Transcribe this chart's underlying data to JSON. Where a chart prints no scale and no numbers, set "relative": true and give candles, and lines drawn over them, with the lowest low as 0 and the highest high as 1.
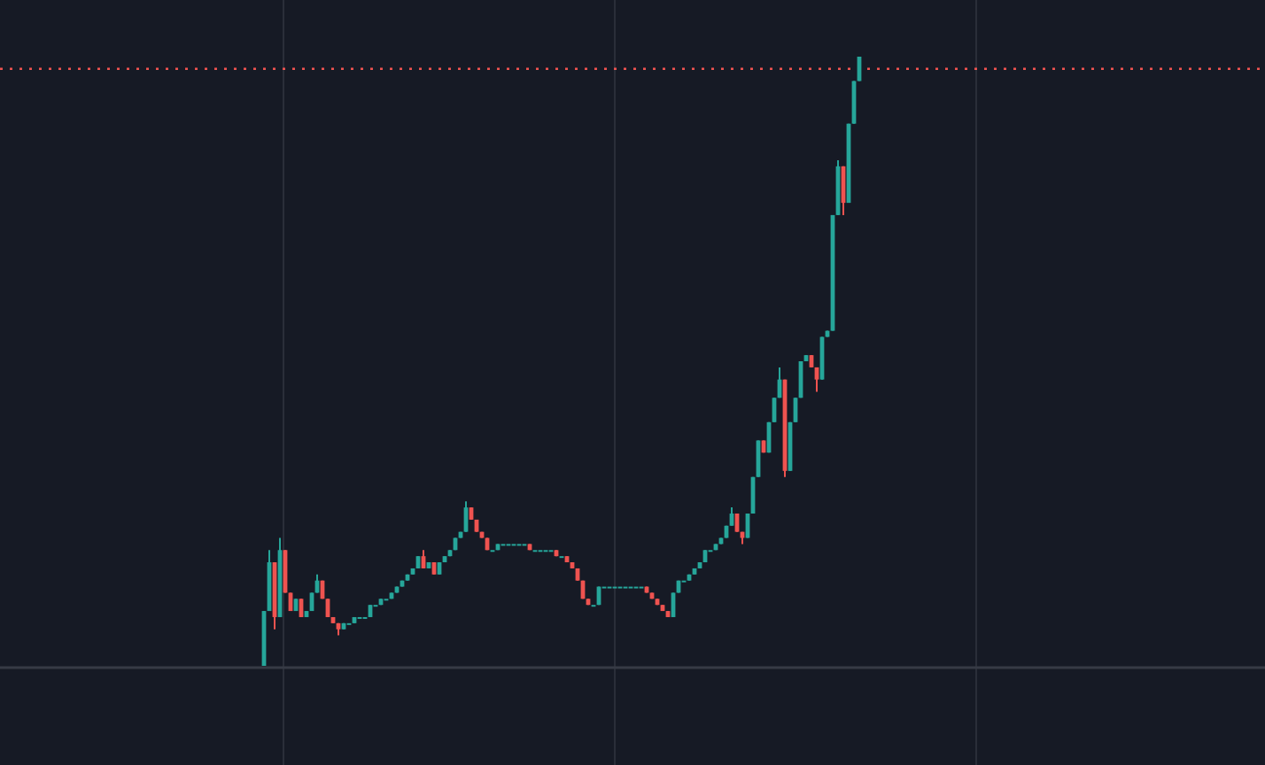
{
  "chart_data": {
    "type": "candlestick",
    "relative": true,
    "categories": [
      null,
      null,
      null,
      null,
      null,
      null,
      null,
      null,
      null,
      null,
      null,
      null,
      null,
      null,
      null,
      null,
      null,
      null,
      null,
      null,
      null,
      null,
      null,
      null,
      null,
      null,
      null,
      null,
      null,
      null,
      null,
      null,
      null,
      null,
      null,
      null,
      null,
      null,
      null,
      null,
      null,
      null,
      null,
      null,
      null,
      null,
      null,
      null,
      null,
      null,
      null,
      null,
      null,
      null,
      null,
      null,
      null,
      null,
      null,
      null,
      null,
      null,
      null,
      null,
      null,
      null,
      null,
      null,
      null,
      null,
      null,
      null,
      null,
      null,
      null,
      null,
      null,
      null,
      null,
      null,
      null,
      null,
      null,
      null,
      null,
      null,
      null,
      null,
      null,
      null,
      null,
      null,
      null,
      null,
      null,
      null,
      null,
      null,
      null,
      null,
      null,
      null,
      null,
      null,
      null,
      null,
      null,
      null,
      null,
      null,
      null,
      null,
      null
    ],
    "ohlc": [
      [
        0,
        0.09,
        0,
        0.09
      ],
      [
        0.09,
        0.19,
        0.09,
        0.17
      ],
      [
        0.17,
        0.17,
        0.06,
        0.08
      ],
      [
        0.08,
        0.21,
        0.08,
        0.19
      ],
      [
        0.19,
        0.19,
        0.12,
        0.12
      ],
      [
        0.12,
        0.12,
        0.09,
        0.09
      ],
      [
        0.09,
        0.11,
        0.09,
        0.11
      ],
      [
        0.11,
        0.11,
        0.08,
        0.08
      ],
      [
        0.08,
        0.09,
        0.08,
        0.09
      ],
      [
        0.09,
        0.12,
        0.09,
        0.12
      ],
      [
        0.12,
        0.15,
        0.12,
        0.14
      ],
      [
        0.14,
        0.14,
        0.11,
        0.11
      ],
      [
        0.11,
        0.11,
        0.08,
        0.08
      ],
      [
        0.08,
        0.08,
        0.07,
        0.07
      ],
      [
        0.07,
        0.07,
        0.05,
        0.06
      ],
      [
        0.06,
        0.07,
        0.06,
        0.07
      ],
      [
        0.07,
        0.07,
        0.07,
        0.07
      ],
      [
        0.07,
        0.08,
        0.07,
        0.08
      ],
      [
        0.08,
        0.08,
        0.08,
        0.08
      ],
      [
        0.08,
        0.08,
        0.08,
        0.08
      ],
      [
        0.08,
        0.1,
        0.08,
        0.1
      ],
      [
        0.1,
        0.1,
        0.1,
        0.1
      ],
      [
        0.1,
        0.11,
        0.1,
        0.11
      ],
      [
        0.11,
        0.11,
        0.11,
        0.11
      ],
      [
        0.11,
        0.12,
        0.11,
        0.12
      ],
      [
        0.12,
        0.13,
        0.12,
        0.13
      ],
      [
        0.13,
        0.14,
        0.13,
        0.14
      ],
      [
        0.14,
        0.15,
        0.14,
        0.15
      ],
      [
        0.15,
        0.16,
        0.15,
        0.16
      ],
      [
        0.16,
        0.18,
        0.16,
        0.18
      ],
      [
        0.18,
        0.19,
        0.16,
        0.16
      ],
      [
        0.16,
        0.17,
        0.16,
        0.17
      ],
      [
        0.17,
        0.17,
        0.15,
        0.15
      ],
      [
        0.15,
        0.17,
        0.15,
        0.17
      ],
      [
        0.17,
        0.18,
        0.17,
        0.18
      ],
      [
        0.18,
        0.19,
        0.18,
        0.19
      ],
      [
        0.19,
        0.21,
        0.19,
        0.21
      ],
      [
        0.21,
        0.22,
        0.21,
        0.22
      ],
      [
        0.22,
        0.27,
        0.22,
        0.26
      ],
      [
        0.26,
        0.26,
        0.24,
        0.24
      ],
      [
        0.24,
        0.24,
        0.22,
        0.22
      ],
      [
        0.22,
        0.22,
        0.21,
        0.21
      ],
      [
        0.21,
        0.21,
        0.19,
        0.19
      ],
      [
        0.19,
        0.19,
        0.19,
        0.19
      ],
      [
        0.19,
        0.2,
        0.19,
        0.2
      ],
      [
        0.2,
        0.2,
        0.2,
        0.2
      ],
      [
        0.2,
        0.2,
        0.2,
        0.2
      ],
      [
        0.2,
        0.2,
        0.2,
        0.2
      ],
      [
        0.2,
        0.2,
        0.2,
        0.2
      ],
      [
        0.2,
        0.2,
        0.2,
        0.2
      ],
      [
        0.2,
        0.2,
        0.19,
        0.19
      ],
      [
        0.19,
        0.19,
        0.19,
        0.19
      ],
      [
        0.19,
        0.19,
        0.19,
        0.19
      ],
      [
        0.19,
        0.19,
        0.19,
        0.19
      ],
      [
        0.19,
        0.19,
        0.19,
        0.19
      ],
      [
        0.19,
        0.19,
        0.18,
        0.18
      ],
      [
        0.18,
        0.18,
        0.18,
        0.18
      ],
      [
        0.18,
        0.18,
        0.17,
        0.17
      ],
      [
        0.17,
        0.17,
        0.16,
        0.16
      ],
      [
        0.16,
        0.16,
        0.14,
        0.14
      ],
      [
        0.14,
        0.14,
        0.11,
        0.11
      ],
      [
        0.11,
        0.11,
        0.1,
        0.1
      ],
      [
        0.1,
        0.1,
        0.1,
        0.1
      ],
      [
        0.1,
        0.13,
        0.1,
        0.13
      ],
      [
        0.13,
        0.13,
        0.13,
        0.13
      ],
      [
        0.13,
        0.13,
        0.13,
        0.13
      ],
      [
        0.13,
        0.13,
        0.13,
        0.13
      ],
      [
        0.13,
        0.13,
        0.13,
        0.13
      ],
      [
        0.13,
        0.13,
        0.13,
        0.13
      ],
      [
        0.13,
        0.13,
        0.13,
        0.13
      ],
      [
        0.13,
        0.13,
        0.13,
        0.13
      ],
      [
        0.13,
        0.13,
        0.13,
        0.13
      ],
      [
        0.13,
        0.13,
        0.12,
        0.12
      ],
      [
        0.12,
        0.12,
        0.11,
        0.11
      ],
      [
        0.11,
        0.11,
        0.1,
        0.1
      ],
      [
        0.1,
        0.1,
        0.09,
        0.09
      ],
      [
        0.09,
        0.09,
        0.08,
        0.08
      ],
      [
        0.08,
        0.12,
        0.08,
        0.12
      ],
      [
        0.12,
        0.14,
        0.12,
        0.14
      ],
      [
        0.14,
        0.14,
        0.14,
        0.14
      ],
      [
        0.14,
        0.15,
        0.14,
        0.15
      ],
      [
        0.15,
        0.16,
        0.15,
        0.16
      ],
      [
        0.16,
        0.17,
        0.16,
        0.17
      ],
      [
        0.17,
        0.19,
        0.17,
        0.19
      ],
      [
        0.19,
        0.19,
        0.19,
        0.19
      ],
      [
        0.19,
        0.2,
        0.19,
        0.2
      ],
      [
        0.2,
        0.21,
        0.2,
        0.21
      ],
      [
        0.21,
        0.23,
        0.21,
        0.23
      ],
      [
        0.23,
        0.26,
        0.23,
        0.25
      ],
      [
        0.25,
        0.25,
        0.22,
        0.22
      ],
      [
        0.22,
        0.22,
        0.2,
        0.21
      ],
      [
        0.21,
        0.25,
        0.21,
        0.25
      ],
      [
        0.25,
        0.31,
        0.25,
        0.31
      ],
      [
        0.31,
        0.37,
        0.31,
        0.37
      ],
      [
        0.37,
        0.37,
        0.35,
        0.35
      ],
      [
        0.35,
        0.4,
        0.35,
        0.4
      ],
      [
        0.4,
        0.44,
        0.4,
        0.44
      ],
      [
        0.44,
        0.49,
        0.44,
        0.47
      ],
      [
        0.47,
        0.47,
        0.31,
        0.32
      ],
      [
        0.32,
        0.4,
        0.32,
        0.4
      ],
      [
        0.4,
        0.44,
        0.4,
        0.44
      ],
      [
        0.44,
        0.5,
        0.44,
        0.5
      ],
      [
        0.5,
        0.51,
        0.5,
        0.51
      ],
      [
        0.51,
        0.51,
        0.49,
        0.49
      ],
      [
        0.49,
        0.49,
        0.45,
        0.47
      ],
      [
        0.47,
        0.54,
        0.47,
        0.54
      ],
      [
        0.54,
        0.55,
        0.54,
        0.55
      ],
      [
        0.55,
        0.74,
        0.55,
        0.74
      ],
      [
        0.74,
        0.83,
        0.74,
        0.82
      ],
      [
        0.82,
        0.82,
        0.74,
        0.76
      ],
      [
        0.76,
        0.89,
        0.76,
        0.89
      ],
      [
        0.89,
        0.96,
        0.89,
        0.96
      ],
      [
        0.96,
        1,
        0.96,
        1
      ]
    ],
    "colors": [
      "#26a69a",
      "#26a69a",
      "#ef5350",
      "#26a69a",
      "#ef5350",
      "#ef5350",
      "#26a69a",
      "#ef5350",
      "#26a69a",
      "#26a69a",
      "#26a69a",
      "#ef5350",
      "#ef5350",
      "#ef5350",
      "#ef5350",
      "#26a69a",
      "#26a69a",
      "#26a69a",
      "#26a69a",
      "#26a69a",
      "#26a69a",
      "#26a69a",
      "#26a69a",
      "#26a69a",
      "#26a69a",
      "#26a69a",
      "#26a69a",
      "#26a69a",
      "#26a69a",
      "#26a69a",
      "#ef5350",
      "#26a69a",
      "#ef5350",
      "#26a69a",
      "#26a69a",
      "#26a69a",
      "#26a69a",
      "#26a69a",
      "#26a69a",
      "#ef5350",
      "#ef5350",
      "#ef5350",
      "#ef5350",
      "#26a69a",
      "#26a69a",
      "#26a69a",
      "#26a69a",
      "#26a69a",
      "#26a69a",
      "#26a69a",
      "#ef5350",
      "#26a69a",
      "#26a69a",
      "#26a69a",
      "#26a69a",
      "#ef5350",
      "#26a69a",
      "#ef5350",
      "#ef5350",
      "#ef5350",
      "#ef5350",
      "#ef5350",
      "#26a69a",
      "#26a69a",
      "#26a69a",
      "#26a69a",
      "#26a69a",
      "#26a69a",
      "#26a69a",
      "#26a69a",
      "#26a69a",
      "#26a69a",
      "#ef5350",
      "#ef5350",
      "#ef5350",
      "#ef5350",
      "#ef5350",
      "#26a69a",
      "#26a69a",
      "#26a69a",
      "#26a69a",
      "#26a69a",
      "#26a69a",
      "#26a69a",
      "#26a69a",
      "#26a69a",
      "#26a69a",
      "#26a69a",
      "#26a69a",
      "#ef5350",
      "#ef5350",
      "#26a69a",
      "#26a69a",
      "#26a69a",
      "#ef5350",
      "#26a69a",
      "#26a69a",
      "#26a69a",
      "#ef5350",
      "#26a69a",
      "#26a69a",
      "#26a69a",
      "#26a69a",
      "#ef5350",
      "#ef5350",
      "#26a69a",
      "#26a69a",
      "#26a69a",
      "#26a69a",
      "#ef5350",
      "#26a69a",
      "#26a69a",
      "#26a69a"
    ],
    "ref_lines": [
      {
        "axis": "y",
        "value": 0.98,
        "color": "#ef5350",
        "line_style": "dotted"
      }
    ]
  }
}
